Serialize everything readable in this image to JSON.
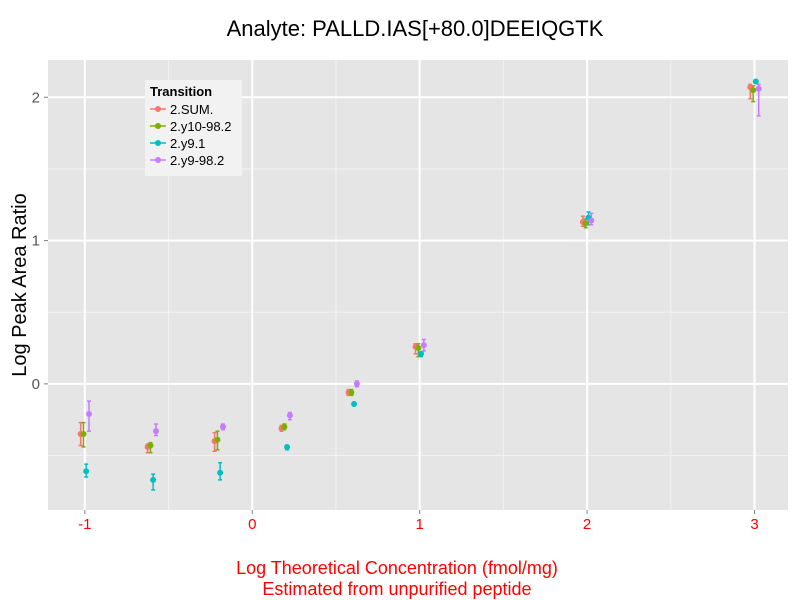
{
  "chart_data": {
    "type": "scatter",
    "title": "Analyte: PALLD.IAS[+80.0]DEEIQGTK",
    "xlabel_lines": [
      "Log Theoretical Concentration (fmol/mg)",
      "Estimated from unpurified peptide"
    ],
    "ylabel": "Log Peak Area Ratio",
    "xlim": [
      -1.22,
      3.2
    ],
    "ylim": [
      -0.88,
      2.26
    ],
    "xticks": [
      -1,
      0,
      1,
      2,
      3
    ],
    "xtick_labels": [
      "-1",
      "0",
      "1",
      "2",
      "3"
    ],
    "yticks": [
      0,
      1,
      2
    ],
    "ytick_labels": [
      "0",
      "1",
      "2"
    ],
    "grid": true,
    "legend": {
      "title": "Transition",
      "position": "top-left"
    },
    "series": [
      {
        "name": "2.SUM.",
        "color": "#F8766D",
        "points": [
          {
            "x": -1.0,
            "y": -0.35,
            "lo": -0.43,
            "hi": -0.27
          },
          {
            "x": -0.6,
            "y": -0.44,
            "lo": -0.48,
            "hi": -0.42
          },
          {
            "x": -0.2,
            "y": -0.4,
            "lo": -0.47,
            "hi": -0.34
          },
          {
            "x": 0.2,
            "y": -0.31,
            "lo": -0.33,
            "hi": -0.29
          },
          {
            "x": 0.6,
            "y": -0.06,
            "lo": -0.08,
            "hi": -0.04
          },
          {
            "x": 1.0,
            "y": 0.26,
            "lo": 0.21,
            "hi": 0.28
          },
          {
            "x": 2.0,
            "y": 1.13,
            "lo": 1.1,
            "hi": 1.17
          },
          {
            "x": 3.0,
            "y": 2.07,
            "lo": 1.99,
            "hi": 2.09
          }
        ]
      },
      {
        "name": "2.y10-98.2",
        "color": "#7CAE00",
        "points": [
          {
            "x": -1.0,
            "y": -0.35,
            "lo": -0.44,
            "hi": -0.27
          },
          {
            "x": -0.6,
            "y": -0.43,
            "lo": -0.48,
            "hi": -0.41
          },
          {
            "x": -0.2,
            "y": -0.39,
            "lo": -0.46,
            "hi": -0.33
          },
          {
            "x": 0.2,
            "y": -0.3,
            "lo": -0.32,
            "hi": -0.28
          },
          {
            "x": 0.6,
            "y": -0.06,
            "lo": -0.08,
            "hi": -0.04
          },
          {
            "x": 1.0,
            "y": 0.25,
            "lo": 0.19,
            "hi": 0.28
          },
          {
            "x": 2.0,
            "y": 1.12,
            "lo": 1.09,
            "hi": 1.15
          },
          {
            "x": 3.0,
            "y": 2.05,
            "lo": 1.97,
            "hi": 2.08
          }
        ]
      },
      {
        "name": "2.y9.1",
        "color": "#00BFC4",
        "points": [
          {
            "x": -1.0,
            "y": -0.61,
            "lo": -0.65,
            "hi": -0.56
          },
          {
            "x": -0.6,
            "y": -0.67,
            "lo": -0.74,
            "hi": -0.63
          },
          {
            "x": -0.2,
            "y": -0.62,
            "lo": -0.67,
            "hi": -0.55
          },
          {
            "x": 0.2,
            "y": -0.44,
            "lo": -0.46,
            "hi": -0.43
          },
          {
            "x": 0.6,
            "y": -0.14,
            "lo": -0.15,
            "hi": -0.13
          },
          {
            "x": 1.0,
            "y": 0.21,
            "lo": 0.19,
            "hi": 0.22
          },
          {
            "x": 2.0,
            "y": 1.16,
            "lo": 1.11,
            "hi": 1.2
          },
          {
            "x": 3.0,
            "y": 2.11,
            "lo": 2.1,
            "hi": 2.12
          }
        ]
      },
      {
        "name": "2.y9-98.2",
        "color": "#C77CFF",
        "points": [
          {
            "x": -1.0,
            "y": -0.21,
            "lo": -0.33,
            "hi": -0.12
          },
          {
            "x": -0.6,
            "y": -0.33,
            "lo": -0.36,
            "hi": -0.28
          },
          {
            "x": -0.2,
            "y": -0.3,
            "lo": -0.32,
            "hi": -0.28
          },
          {
            "x": 0.2,
            "y": -0.22,
            "lo": -0.25,
            "hi": -0.2
          },
          {
            "x": 0.6,
            "y": 0.0,
            "lo": -0.02,
            "hi": 0.02
          },
          {
            "x": 1.0,
            "y": 0.27,
            "lo": 0.23,
            "hi": 0.31
          },
          {
            "x": 2.0,
            "y": 1.14,
            "lo": 1.11,
            "hi": 1.19
          },
          {
            "x": 3.0,
            "y": 2.06,
            "lo": 1.87,
            "hi": 2.09
          }
        ]
      }
    ]
  }
}
